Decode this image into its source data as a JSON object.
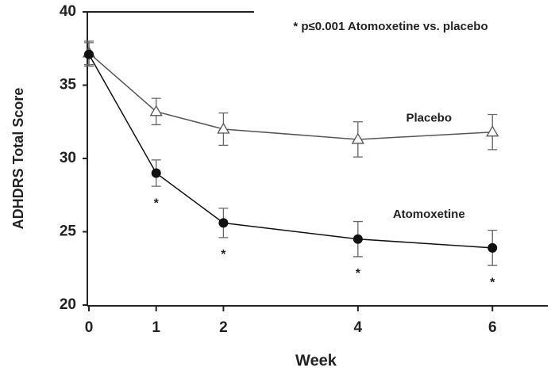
{
  "chart_data": {
    "type": "line",
    "x_label": "Week",
    "y_label": "ADHDRS Total Score",
    "annotation": "* p≤0.001 Atomoxetine vs. placebo",
    "x": [
      0,
      1,
      2,
      4,
      6
    ],
    "xlim": [
      0,
      6.8
    ],
    "xticks": [
      0,
      1,
      2,
      4,
      6
    ],
    "ylim": [
      20,
      40
    ],
    "yticks": [
      20,
      25,
      30,
      35,
      40
    ],
    "grid": false,
    "series": [
      {
        "name": "Placebo",
        "color": "#555555",
        "marker": "open-triangle",
        "values": [
          37.2,
          33.2,
          32.0,
          31.3,
          31.8
        ],
        "errors": [
          0.8,
          0.9,
          1.1,
          1.2,
          1.2
        ]
      },
      {
        "name": "Atomoxetine",
        "color": "#111111",
        "marker": "filled-circle",
        "values": [
          37.1,
          29.0,
          25.6,
          24.5,
          23.9
        ],
        "errors": [
          0.8,
          0.9,
          1.0,
          1.2,
          1.2
        ]
      }
    ],
    "significance": {
      "x": [
        1,
        2,
        4,
        6
      ],
      "label": "*"
    }
  }
}
